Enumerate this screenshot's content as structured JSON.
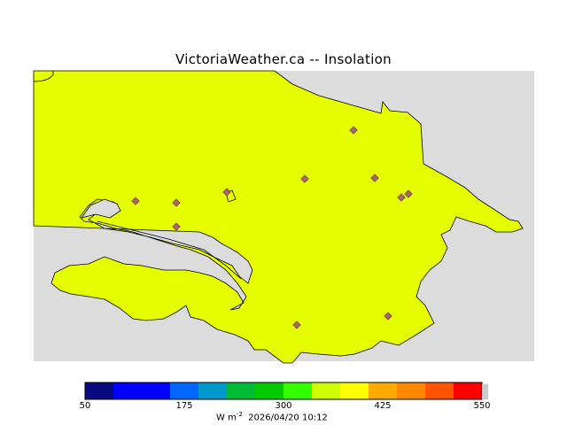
{
  "header": {
    "site": "VictoriaWeather.ca",
    "separator": "--",
    "product": "Insolation"
  },
  "legend": {
    "colors": [
      "#0a0a80",
      "#0000ff",
      "#0000ff",
      "#0066ff",
      "#0099cc",
      "#00bb33",
      "#00cc00",
      "#33ff00",
      "#ccff00",
      "#ffff00",
      "#ffaa00",
      "#ff8800",
      "#ff5500",
      "#ff0000"
    ],
    "tick_labels": [
      "50",
      "175",
      "300",
      "425",
      "550"
    ],
    "min": 50,
    "max": 550,
    "units_base": "W m",
    "units_exp": "-2",
    "timestamp": "2026/04/20 10:12"
  },
  "map_colors": {
    "land_outside": "#dcdcdc",
    "green_zone": "#33ff00",
    "yellow_zone": "#e6ff00",
    "orange_zone": "#ffaa00",
    "deep_orange_zone": "#ff5500",
    "red_zone": "#ff0000",
    "station_marker": "#aa6666"
  }
}
